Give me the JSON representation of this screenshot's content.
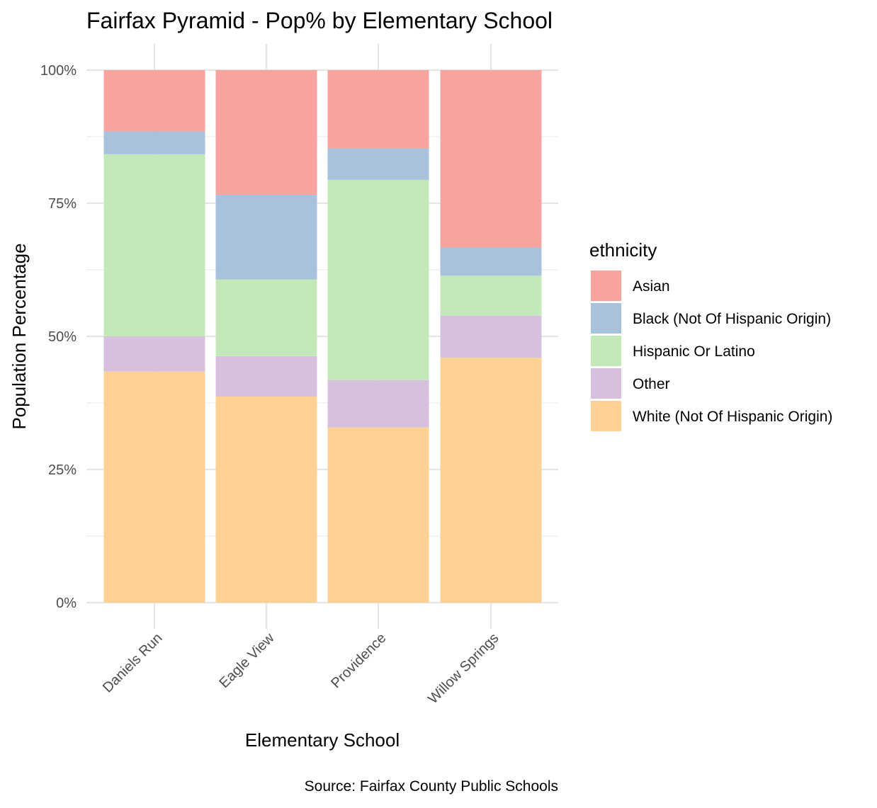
{
  "chart_data": {
    "type": "bar",
    "stacked": true,
    "title": "Fairfax Pyramid - Pop% by Elementary School",
    "xlabel": "Elementary School",
    "ylabel": "Population Percentage",
    "caption": "Source: Fairfax County Public Schools",
    "ylim": [
      0,
      100
    ],
    "y_ticks": [
      "0%",
      "25%",
      "50%",
      "75%",
      "100%"
    ],
    "y_tick_values": [
      0,
      25,
      50,
      75,
      100
    ],
    "grid": true,
    "legend": {
      "title": "ethnicity",
      "position": "right"
    },
    "categories": [
      "Daniels Run",
      "Eagle View",
      "Providence",
      "Willow Springs"
    ],
    "series": [
      {
        "name": "White (Not Of Hispanic Origin)",
        "color": "#FDD093",
        "values": [
          43.4,
          38.7,
          32.9,
          46.0
        ]
      },
      {
        "name": "Other",
        "color": "#D7C0DE",
        "values": [
          6.6,
          7.6,
          8.9,
          7.9
        ]
      },
      {
        "name": "Hispanic Or Latino",
        "color": "#C4E8BA",
        "values": [
          34.2,
          14.4,
          37.6,
          7.5
        ]
      },
      {
        "name": "Black (Not Of Hispanic Origin)",
        "color": "#A8C2DC",
        "values": [
          4.3,
          15.9,
          5.9,
          5.3
        ]
      },
      {
        "name": "Asian",
        "color": "#F7A49F",
        "values": [
          11.5,
          23.4,
          14.7,
          33.3
        ]
      }
    ],
    "legend_order": [
      "Asian",
      "Black (Not Of Hispanic Origin)",
      "Hispanic Or Latino",
      "Other",
      "White (Not Of Hispanic Origin)"
    ]
  }
}
